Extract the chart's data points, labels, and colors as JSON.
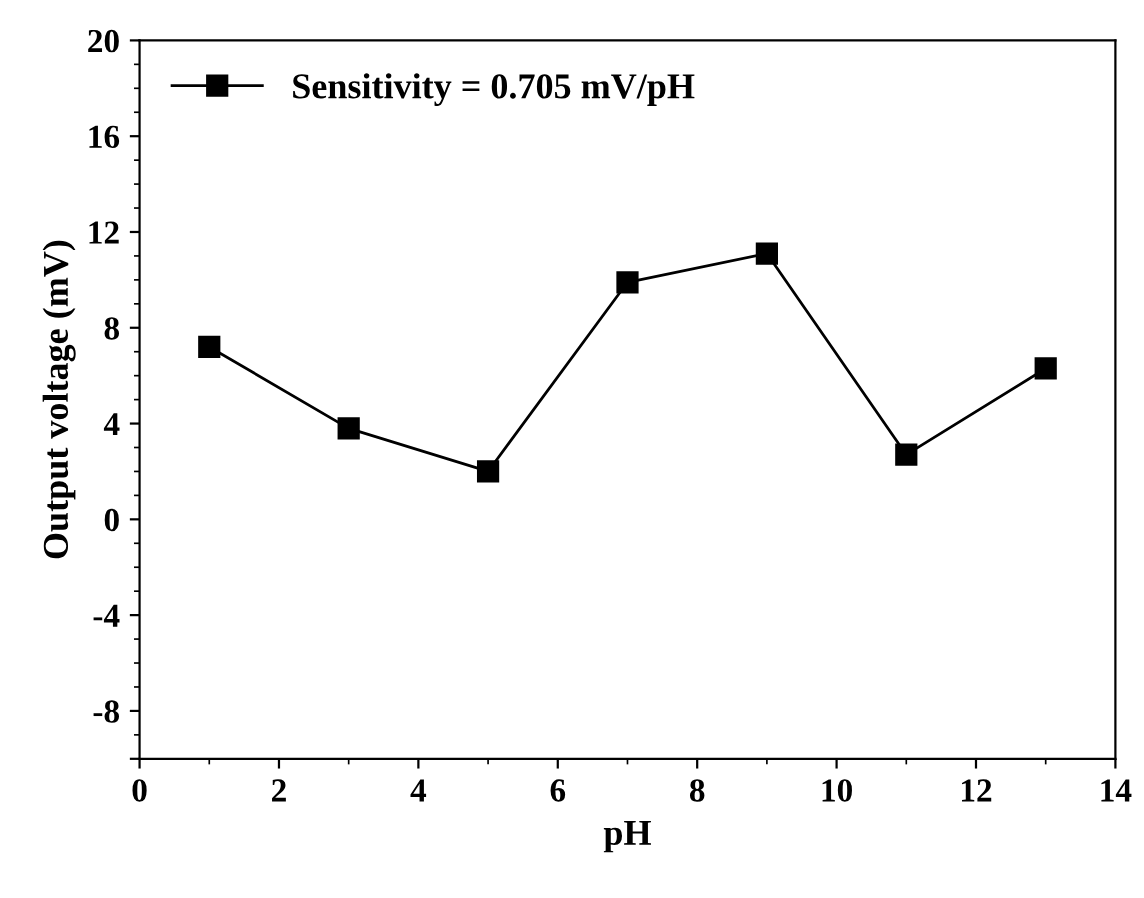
{
  "chart_data": {
    "type": "line",
    "xlabel": "pH",
    "ylabel": "Output voltage (mV)",
    "x": [
      1,
      3,
      5,
      7,
      9,
      11,
      13
    ],
    "series": [
      {
        "name": "Sensitivity = 0.705 mV/pH",
        "color": "#000000",
        "values": [
          7.2,
          3.8,
          2.0,
          9.9,
          11.1,
          2.7,
          6.3
        ]
      }
    ],
    "xlim": [
      0,
      14
    ],
    "xticks": [
      0,
      2,
      4,
      6,
      8,
      10,
      12,
      14
    ],
    "ylim": [
      -10,
      20
    ],
    "yticks": [
      {
        "value": -10,
        "label": null
      },
      -8,
      -4,
      0,
      4,
      8,
      12,
      16,
      20
    ],
    "marker": "square",
    "line_style": "solid",
    "legend": "top left",
    "grid": false
  }
}
